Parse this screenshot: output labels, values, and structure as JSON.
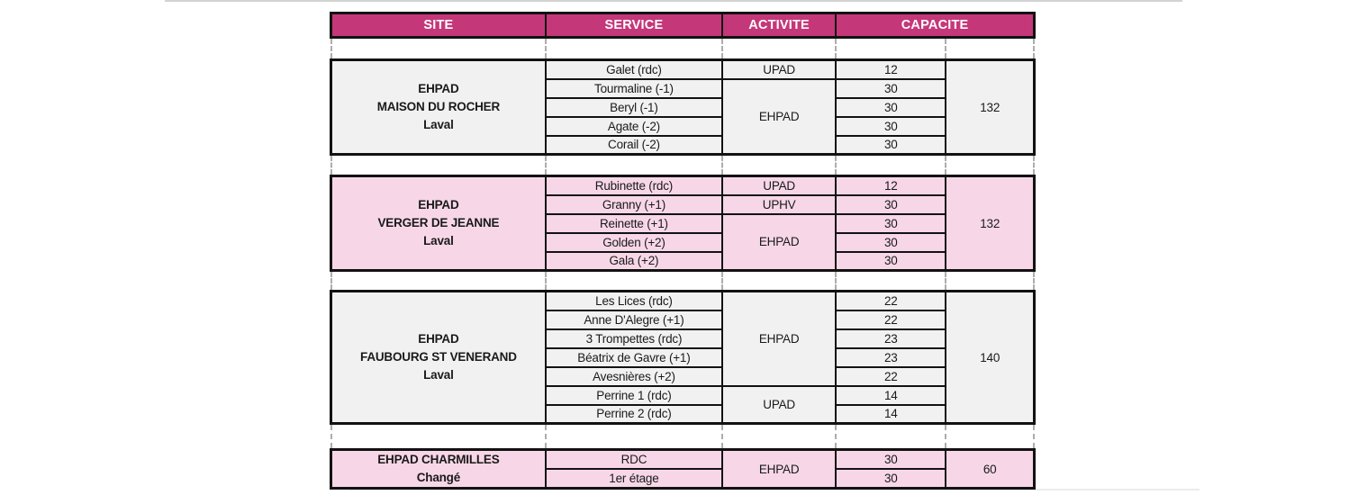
{
  "header": {
    "site": "SITE",
    "service": "SERVICE",
    "activite": "ACTIVITE",
    "capacite": "CAPACITE"
  },
  "groups": [
    {
      "theme": "gray",
      "site_lines": [
        "EHPAD",
        "MAISON DU ROCHER",
        "Laval"
      ],
      "rows": [
        {
          "service": "Galet (rdc)",
          "capacity": "12"
        },
        {
          "service": "Tourmaline (-1)",
          "capacity": "30"
        },
        {
          "service": "Beryl (-1)",
          "capacity": "30"
        },
        {
          "service": "Agate (-2)",
          "capacity": "30"
        },
        {
          "service": "Corail (-2)",
          "capacity": "30"
        }
      ],
      "activities": [
        {
          "label": "UPAD",
          "span": 1
        },
        {
          "label": "EHPAD",
          "span": 4
        }
      ],
      "total": "132"
    },
    {
      "theme": "pink",
      "site_lines": [
        "EHPAD",
        "VERGER DE JEANNE",
        "Laval"
      ],
      "rows": [
        {
          "service": "Rubinette (rdc)",
          "capacity": "12"
        },
        {
          "service": "Granny (+1)",
          "capacity": "30"
        },
        {
          "service": "Reinette (+1)",
          "capacity": "30"
        },
        {
          "service": "Golden (+2)",
          "capacity": "30"
        },
        {
          "service": "Gala (+2)",
          "capacity": "30"
        }
      ],
      "activities": [
        {
          "label": "UPAD",
          "span": 1
        },
        {
          "label": "UPHV",
          "span": 1
        },
        {
          "label": "EHPAD",
          "span": 3
        }
      ],
      "total": "132"
    },
    {
      "theme": "gray",
      "site_lines": [
        "EHPAD",
        "FAUBOURG ST VENERAND",
        "Laval"
      ],
      "rows": [
        {
          "service": "Les Lices (rdc)",
          "capacity": "22"
        },
        {
          "service": "Anne D'Alegre (+1)",
          "capacity": "22"
        },
        {
          "service": "3 Trompettes (rdc)",
          "capacity": "23"
        },
        {
          "service": "Béatrix de Gavre (+1)",
          "capacity": "23"
        },
        {
          "service": "Avesnières (+2)",
          "capacity": "22"
        },
        {
          "service": "Perrine 1 (rdc)",
          "capacity": "14"
        },
        {
          "service": "Perrine 2 (rdc)",
          "capacity": "14"
        }
      ],
      "activities": [
        {
          "label": "EHPAD",
          "span": 5
        },
        {
          "label": "UPAD",
          "span": 2
        }
      ],
      "total": "140"
    },
    {
      "theme": "pink",
      "site_lines": [
        "EHPAD CHARMILLES",
        "Changé"
      ],
      "rows": [
        {
          "service": "RDC",
          "capacity": "30"
        },
        {
          "service": "1er étage",
          "capacity": "30"
        }
      ],
      "activities": [
        {
          "label": "EHPAD",
          "span": 2
        }
      ],
      "total": "60"
    }
  ],
  "colors": {
    "header_bg": "#c4387a",
    "header_text": "#ffffff",
    "gray_bg": "#f1f1f1",
    "pink_bg": "#f7d7e7",
    "border": "#121212",
    "dash": "#adadad"
  }
}
